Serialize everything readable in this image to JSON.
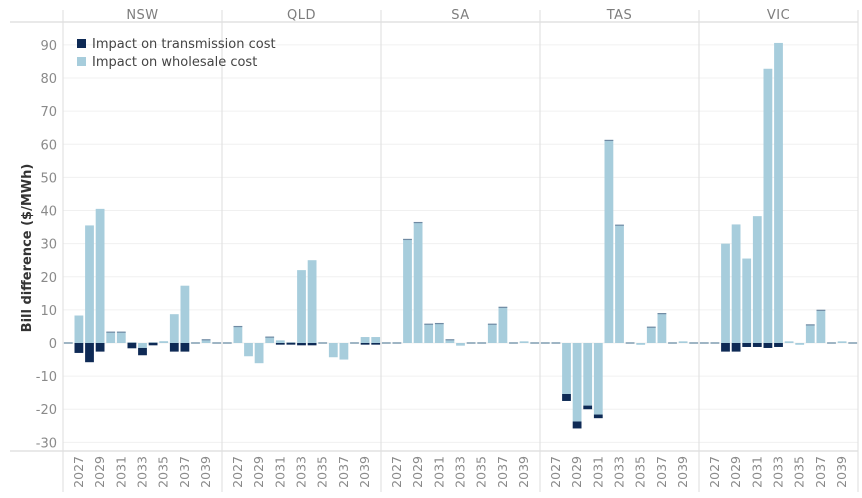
{
  "chart_data": {
    "type": "bar",
    "stacked": true,
    "title": "",
    "ylabel": "Bill difference ($/MWh)",
    "xlabel": "",
    "ylim": [
      -33,
      95
    ],
    "yticks": [
      90,
      80,
      70,
      60,
      50,
      40,
      30,
      20,
      10,
      0,
      -10,
      -20,
      -30
    ],
    "grid": true,
    "legend_position": "top-left",
    "years": [
      2026,
      2027,
      2028,
      2029,
      2030,
      2031,
      2032,
      2033,
      2034,
      2035,
      2036,
      2037,
      2038,
      2039,
      2040
    ],
    "xtick_labels": [
      "2027",
      "2029",
      "2031",
      "2033",
      "2035",
      "2037",
      "2039"
    ],
    "series_info": [
      {
        "key": "transmission",
        "name": "Impact on transmission cost",
        "color": "#0e2a55"
      },
      {
        "key": "wholesale",
        "name": "Impact on wholesale cost",
        "color": "#a7cddc"
      }
    ],
    "panels": [
      {
        "region": "NSW",
        "wholesale": [
          0,
          8.3,
          35.5,
          40.5,
          3.3,
          3.3,
          0,
          -1.5,
          0,
          0.2,
          8.7,
          17.3,
          0,
          1.0,
          0
        ],
        "transmission": [
          0,
          -3.0,
          -5.8,
          -2.6,
          0,
          0,
          -1.6,
          -2.2,
          -0.7,
          0,
          -2.6,
          -2.6,
          0,
          0,
          0
        ]
      },
      {
        "region": "QLD",
        "wholesale": [
          0,
          5.0,
          -4.0,
          -6.1,
          1.8,
          0.8,
          0,
          22.0,
          25.0,
          0,
          -4.3,
          -5.0,
          0,
          1.8,
          1.8
        ],
        "transmission": [
          0,
          0,
          0,
          0,
          0,
          -0.5,
          -0.5,
          -0.7,
          -0.7,
          0,
          0,
          0,
          0,
          -0.5,
          -0.5
        ]
      },
      {
        "region": "SA",
        "wholesale": [
          0,
          0,
          31.3,
          36.4,
          5.7,
          5.9,
          1.0,
          -0.8,
          0,
          0,
          5.7,
          10.8,
          0,
          0.5,
          0
        ],
        "transmission": [
          0,
          0,
          0,
          0,
          0,
          0,
          0,
          0,
          0,
          0,
          0,
          0,
          0,
          0,
          0
        ]
      },
      {
        "region": "TAS",
        "wholesale": [
          0,
          0,
          -15.4,
          -23.7,
          -18.9,
          -21.6,
          61.2,
          35.6,
          0,
          -0.3,
          4.8,
          8.9,
          0,
          0.5,
          0
        ],
        "transmission": [
          0,
          0,
          -2.1,
          -2.1,
          -1.1,
          -1.1,
          0,
          0,
          0,
          0,
          0,
          0,
          0,
          0,
          0
        ]
      },
      {
        "region": "VIC",
        "wholesale": [
          0,
          0,
          30.0,
          35.8,
          25.5,
          38.3,
          82.8,
          90.6,
          0.5,
          -0.4,
          5.5,
          9.9,
          0,
          0.5,
          0
        ],
        "transmission": [
          0,
          0,
          -2.6,
          -2.6,
          -1.2,
          -1.2,
          -1.5,
          -1.2,
          0,
          0,
          0,
          0,
          0,
          0,
          0
        ]
      }
    ]
  }
}
